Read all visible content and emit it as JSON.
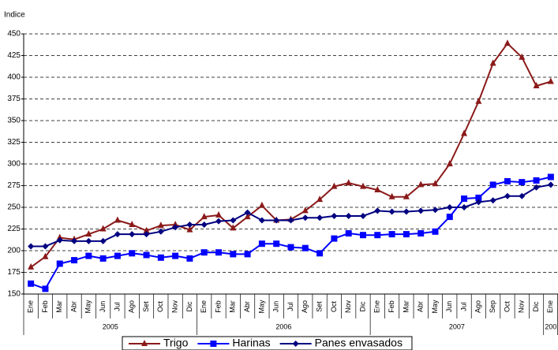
{
  "chart_data": {
    "type": "line",
    "y_label": "Indice",
    "categories": [
      "Ene",
      "Feb",
      "Mar",
      "Abr",
      "May",
      "Jun",
      "Jul",
      "Ago",
      "Set",
      "Oct",
      "Nov",
      "Dic",
      "Ene",
      "Feb",
      "Mar",
      "Abr",
      "May",
      "Jun",
      "Jul",
      "Ago",
      "Set",
      "Oct",
      "Nov",
      "Dic",
      "Ene",
      "Feb",
      "Mar",
      "Abr",
      "May",
      "Jun",
      "Jul",
      "Ago",
      "Sep",
      "Oct",
      "Nov",
      "Dic",
      "Ene"
    ],
    "x_groups": [
      "2005",
      "2006",
      "2007",
      "200"
    ],
    "series": [
      {
        "name": "Trigo",
        "color": "#8b1a1a",
        "marker": "triangle",
        "values": [
          181,
          193,
          215,
          213,
          219,
          225,
          235,
          230,
          223,
          229,
          230,
          224,
          239,
          241,
          226,
          239,
          252,
          235,
          236,
          246,
          259,
          274,
          278,
          274,
          270,
          262,
          262,
          276,
          277,
          300,
          335,
          372,
          416,
          439,
          423,
          390,
          395
        ]
      },
      {
        "name": "Harinas",
        "color": "#0000ff",
        "marker": "square",
        "values": [
          162,
          156,
          185,
          189,
          194,
          191,
          194,
          197,
          195,
          192,
          194,
          191,
          198,
          198,
          196,
          196,
          208,
          208,
          204,
          203,
          197,
          214,
          220,
          218,
          218,
          219,
          219,
          220,
          222,
          239,
          260,
          261,
          276,
          280,
          279,
          281,
          285
        ]
      },
      {
        "name": "Panes envasados",
        "color": "#000080",
        "marker": "diamond",
        "values": [
          205,
          205,
          212,
          211,
          211,
          211,
          219,
          219,
          219,
          222,
          227,
          230,
          230,
          234,
          235,
          244,
          235,
          235,
          235,
          238,
          238,
          240,
          240,
          240,
          246,
          245,
          245,
          246,
          247,
          250,
          250,
          256,
          258,
          263,
          263,
          273,
          276
        ]
      }
    ],
    "ylim": [
      150,
      450
    ],
    "yticks": [
      150,
      175,
      200,
      225,
      250,
      275,
      300,
      325,
      350,
      375,
      400,
      425,
      450
    ],
    "grid": true,
    "legend": "bottom"
  }
}
